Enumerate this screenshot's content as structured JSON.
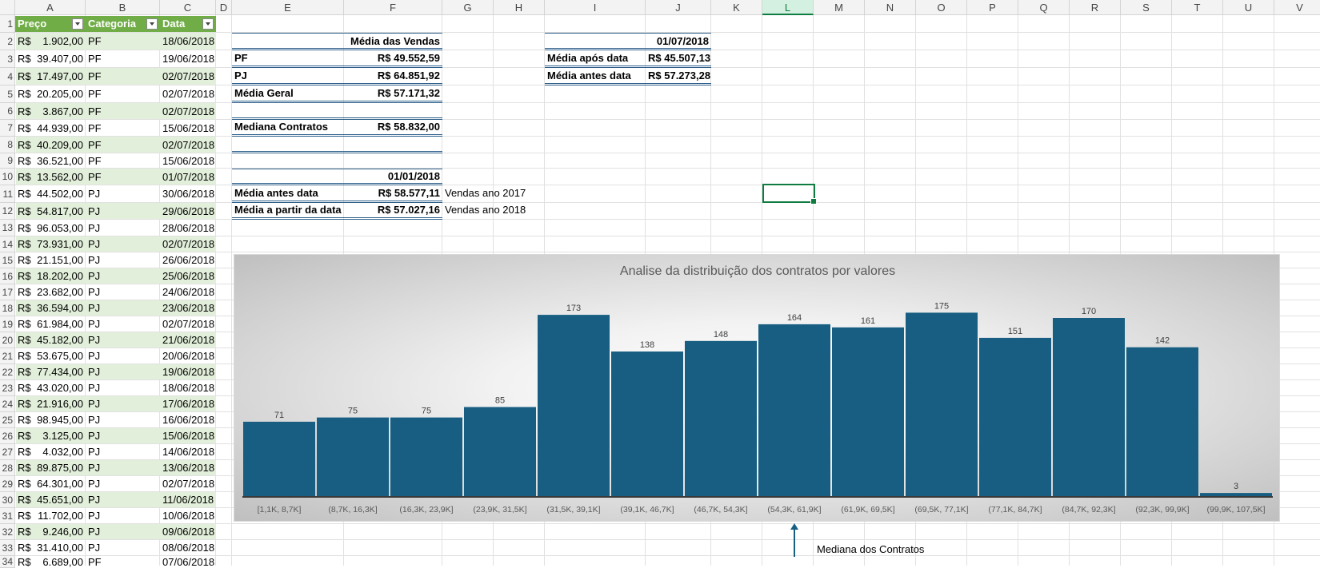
{
  "columns": [
    "A",
    "B",
    "C",
    "D",
    "E",
    "F",
    "G",
    "H",
    "I",
    "J",
    "K",
    "L",
    "M",
    "N",
    "O",
    "P",
    "Q",
    "R",
    "S",
    "T",
    "U",
    "V"
  ],
  "selected_column": "L",
  "rows": [
    "1",
    "2",
    "3",
    "4",
    "5",
    "6",
    "7",
    "8",
    "9",
    "10",
    "11",
    "12",
    "13",
    "14",
    "15",
    "16",
    "17",
    "18",
    "19",
    "20",
    "21",
    "22",
    "23",
    "24",
    "25",
    "26",
    "27",
    "28",
    "29",
    "30",
    "31",
    "32",
    "33",
    "34"
  ],
  "table": {
    "headers": [
      "Preço",
      "Categoria",
      "Data"
    ],
    "rows": [
      {
        "prefix": "R$",
        "preco": "1.902,00",
        "categoria": "PF",
        "data": "18/06/2018"
      },
      {
        "prefix": "R$",
        "preco": "39.407,00",
        "categoria": "PF",
        "data": "19/06/2018"
      },
      {
        "prefix": "R$",
        "preco": "17.497,00",
        "categoria": "PF",
        "data": "02/07/2018"
      },
      {
        "prefix": "R$",
        "preco": "20.205,00",
        "categoria": "PF",
        "data": "02/07/2018"
      },
      {
        "prefix": "R$",
        "preco": "3.867,00",
        "categoria": "PF",
        "data": "02/07/2018"
      },
      {
        "prefix": "R$",
        "preco": "44.939,00",
        "categoria": "PF",
        "data": "15/06/2018"
      },
      {
        "prefix": "R$",
        "preco": "40.209,00",
        "categoria": "PF",
        "data": "02/07/2018"
      },
      {
        "prefix": "R$",
        "preco": "36.521,00",
        "categoria": "PF",
        "data": "15/06/2018"
      },
      {
        "prefix": "R$",
        "preco": "13.562,00",
        "categoria": "PF",
        "data": "01/07/2018"
      },
      {
        "prefix": "R$",
        "preco": "44.502,00",
        "categoria": "PJ",
        "data": "30/06/2018"
      },
      {
        "prefix": "R$",
        "preco": "54.817,00",
        "categoria": "PJ",
        "data": "29/06/2018"
      },
      {
        "prefix": "R$",
        "preco": "96.053,00",
        "categoria": "PJ",
        "data": "28/06/2018"
      },
      {
        "prefix": "R$",
        "preco": "73.931,00",
        "categoria": "PJ",
        "data": "02/07/2018"
      },
      {
        "prefix": "R$",
        "preco": "21.151,00",
        "categoria": "PJ",
        "data": "26/06/2018"
      },
      {
        "prefix": "R$",
        "preco": "18.202,00",
        "categoria": "PJ",
        "data": "25/06/2018"
      },
      {
        "prefix": "R$",
        "preco": "23.682,00",
        "categoria": "PJ",
        "data": "24/06/2018"
      },
      {
        "prefix": "R$",
        "preco": "36.594,00",
        "categoria": "PJ",
        "data": "23/06/2018"
      },
      {
        "prefix": "R$",
        "preco": "61.984,00",
        "categoria": "PJ",
        "data": "02/07/2018"
      },
      {
        "prefix": "R$",
        "preco": "45.182,00",
        "categoria": "PJ",
        "data": "21/06/2018"
      },
      {
        "prefix": "R$",
        "preco": "53.675,00",
        "categoria": "PJ",
        "data": "20/06/2018"
      },
      {
        "prefix": "R$",
        "preco": "77.434,00",
        "categoria": "PJ",
        "data": "19/06/2018"
      },
      {
        "prefix": "R$",
        "preco": "43.020,00",
        "categoria": "PJ",
        "data": "18/06/2018"
      },
      {
        "prefix": "R$",
        "preco": "21.916,00",
        "categoria": "PJ",
        "data": "17/06/2018"
      },
      {
        "prefix": "R$",
        "preco": "98.945,00",
        "categoria": "PJ",
        "data": "16/06/2018"
      },
      {
        "prefix": "R$",
        "preco": "3.125,00",
        "categoria": "PJ",
        "data": "15/06/2018"
      },
      {
        "prefix": "R$",
        "preco": "4.032,00",
        "categoria": "PJ",
        "data": "14/06/2018"
      },
      {
        "prefix": "R$",
        "preco": "89.875,00",
        "categoria": "PJ",
        "data": "13/06/2018"
      },
      {
        "prefix": "R$",
        "preco": "64.301,00",
        "categoria": "PJ",
        "data": "02/07/2018"
      },
      {
        "prefix": "R$",
        "preco": "45.651,00",
        "categoria": "PJ",
        "data": "11/06/2018"
      },
      {
        "prefix": "R$",
        "preco": "11.702,00",
        "categoria": "PJ",
        "data": "10/06/2018"
      },
      {
        "prefix": "R$",
        "preco": "9.246,00",
        "categoria": "PJ",
        "data": "09/06/2018"
      },
      {
        "prefix": "R$",
        "preco": "31.410,00",
        "categoria": "PJ",
        "data": "08/06/2018"
      },
      {
        "prefix": "R$",
        "preco": "6.689,00",
        "categoria": "PF",
        "data": "07/06/2018"
      }
    ]
  },
  "summary": {
    "media_vendas_title": "Média das Vendas",
    "pf_label": "PF",
    "pf_value": "R$ 49.552,59",
    "pj_label": "PJ",
    "pj_value": "R$ 64.851,92",
    "geral_label": "Média Geral",
    "geral_value": "R$ 57.171,32",
    "mediana_label": "Mediana Contratos",
    "mediana_value": "R$ 58.832,00",
    "date1": "01/01/2018",
    "antes_label": "Média antes data",
    "antes_value": "R$ 58.577,11",
    "antes_note": "Vendas ano 2017",
    "apartir_label": "Média a partir da data",
    "apartir_value": "R$ 57.027,16",
    "apartir_note": "Vendas ano 2018",
    "date2": "01/07/2018",
    "apos_label": "Média após data",
    "apos_value": "R$ 45.507,13",
    "antes2_label": "Média antes data",
    "antes2_value": "R$ 57.273,28"
  },
  "chart_data": {
    "type": "bar",
    "title": "Analise da distribuição dos contratos por valores",
    "categories": [
      "[1,1K, 8,7K]",
      "(8,7K, 16,3K]",
      "(16,3K, 23,9K]",
      "(23,9K, 31,5K]",
      "(31,5K, 39,1K]",
      "(39,1K, 46,7K]",
      "(46,7K, 54,3K]",
      "(54,3K, 61,9K]",
      "(61,9K, 69,5K]",
      "(69,5K, 77,1K]",
      "(77,1K, 84,7K]",
      "(84,7K, 92,3K]",
      "(92,3K, 99,9K]",
      "(99,9K, 107,5K]"
    ],
    "values": [
      71,
      75,
      75,
      85,
      173,
      138,
      148,
      164,
      161,
      175,
      151,
      170,
      142,
      3
    ],
    "ylim": [
      0,
      200
    ],
    "bar_color": "#175e82",
    "grid": false
  },
  "annotation": {
    "text": "Mediana dos Contratos"
  },
  "colors": {
    "table_header": "#70ad47",
    "table_band": "#e2efda",
    "accent": "#107c41",
    "bar": "#175e82"
  }
}
